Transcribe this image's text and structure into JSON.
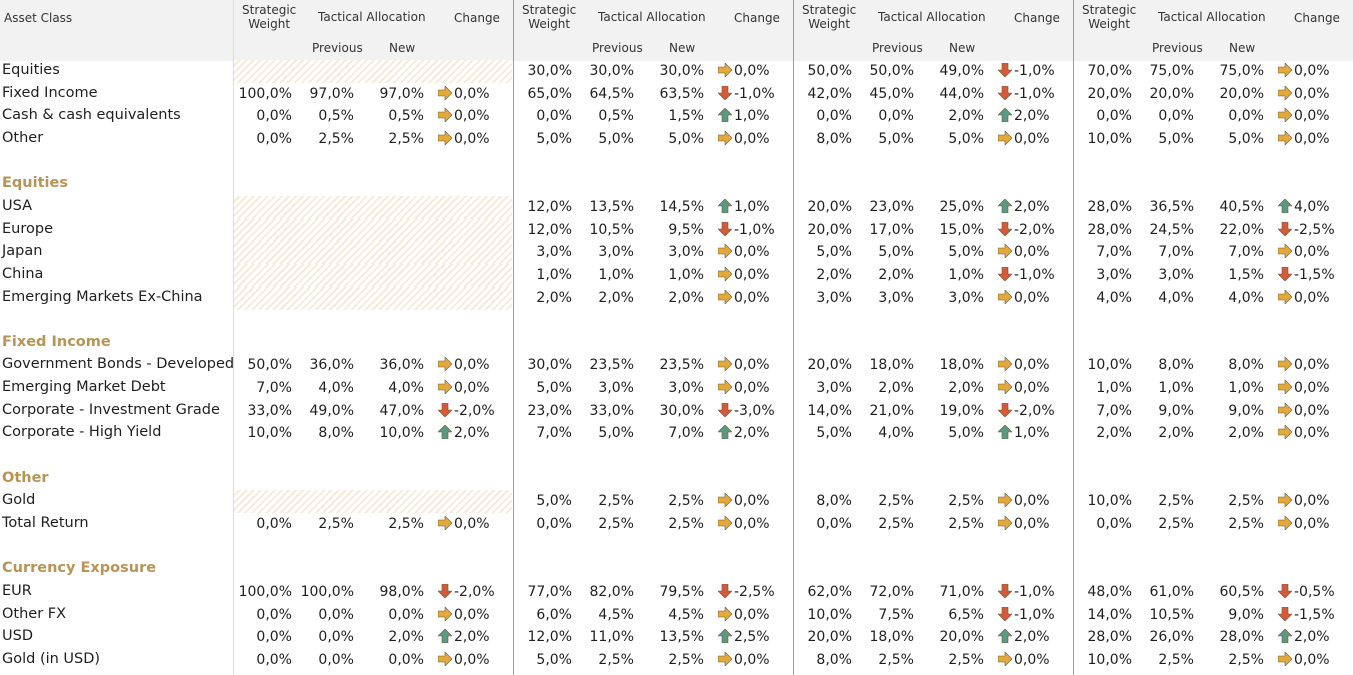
{
  "header": {
    "asset_class": "Asset Class",
    "strategic": "Strategic\nWeight",
    "tactical": "Tactical Allocation",
    "change": "Change",
    "previous": "Previous",
    "new": "New"
  },
  "colors": {
    "up": "#5a9a83",
    "down": "#d65a3a",
    "flat": "#e4a93b",
    "section": "#b99454",
    "hatch": "#f6ead8"
  },
  "rows": [
    {
      "label": "Equities",
      "type": "data",
      "hatch": true,
      "vals": [
        null,
        [
          "30,0%",
          "30,0%",
          "30,0%",
          "flat",
          "0,0%"
        ],
        [
          "50,0%",
          "50,0%",
          "49,0%",
          "down",
          "-1,0%"
        ],
        [
          "70,0%",
          "75,0%",
          "75,0%",
          "flat",
          "0,0%"
        ]
      ]
    },
    {
      "label": "Fixed Income",
      "type": "data",
      "vals": [
        [
          "100,0%",
          "97,0%",
          "97,0%",
          "flat",
          "0,0%"
        ],
        [
          "65,0%",
          "64,5%",
          "63,5%",
          "down",
          "-1,0%"
        ],
        [
          "42,0%",
          "45,0%",
          "44,0%",
          "down",
          "-1,0%"
        ],
        [
          "20,0%",
          "20,0%",
          "20,0%",
          "flat",
          "0,0%"
        ]
      ]
    },
    {
      "label": "Cash & cash equivalents",
      "type": "data",
      "vals": [
        [
          "0,0%",
          "0,5%",
          "0,5%",
          "flat",
          "0,0%"
        ],
        [
          "0,0%",
          "0,5%",
          "1,5%",
          "up",
          "1,0%"
        ],
        [
          "0,0%",
          "0,0%",
          "2,0%",
          "up",
          "2,0%"
        ],
        [
          "0,0%",
          "0,0%",
          "0,0%",
          "flat",
          "0,0%"
        ]
      ]
    },
    {
      "label": "Other",
      "type": "data",
      "vals": [
        [
          "0,0%",
          "2,5%",
          "2,5%",
          "flat",
          "0,0%"
        ],
        [
          "5,0%",
          "5,0%",
          "5,0%",
          "flat",
          "0,0%"
        ],
        [
          "8,0%",
          "5,0%",
          "5,0%",
          "flat",
          "0,0%"
        ],
        [
          "10,0%",
          "5,0%",
          "5,0%",
          "flat",
          "0,0%"
        ]
      ]
    },
    {
      "label": "",
      "type": "blank"
    },
    {
      "label": "Equities",
      "type": "section"
    },
    {
      "label": "USA",
      "type": "data",
      "hatch": true,
      "vals": [
        null,
        [
          "12,0%",
          "13,5%",
          "14,5%",
          "up",
          "1,0%"
        ],
        [
          "20,0%",
          "23,0%",
          "25,0%",
          "up",
          "2,0%"
        ],
        [
          "28,0%",
          "36,5%",
          "40,5%",
          "up",
          "4,0%"
        ]
      ]
    },
    {
      "label": "Europe",
      "type": "data",
      "hatch": true,
      "vals": [
        null,
        [
          "12,0%",
          "10,5%",
          "9,5%",
          "down",
          "-1,0%"
        ],
        [
          "20,0%",
          "17,0%",
          "15,0%",
          "down",
          "-2,0%"
        ],
        [
          "28,0%",
          "24,5%",
          "22,0%",
          "down",
          "-2,5%"
        ]
      ]
    },
    {
      "label": "Japan",
      "type": "data",
      "hatch": true,
      "vals": [
        null,
        [
          "3,0%",
          "3,0%",
          "3,0%",
          "flat",
          "0,0%"
        ],
        [
          "5,0%",
          "5,0%",
          "5,0%",
          "flat",
          "0,0%"
        ],
        [
          "7,0%",
          "7,0%",
          "7,0%",
          "flat",
          "0,0%"
        ]
      ]
    },
    {
      "label": "China",
      "type": "data",
      "hatch": true,
      "vals": [
        null,
        [
          "1,0%",
          "1,0%",
          "1,0%",
          "flat",
          "0,0%"
        ],
        [
          "2,0%",
          "2,0%",
          "1,0%",
          "down",
          "-1,0%"
        ],
        [
          "3,0%",
          "3,0%",
          "1,5%",
          "down",
          "-1,5%"
        ]
      ]
    },
    {
      "label": "Emerging Markets Ex-China",
      "type": "data",
      "hatch": true,
      "vals": [
        null,
        [
          "2,0%",
          "2,0%",
          "2,0%",
          "flat",
          "0,0%"
        ],
        [
          "3,0%",
          "3,0%",
          "3,0%",
          "flat",
          "0,0%"
        ],
        [
          "4,0%",
          "4,0%",
          "4,0%",
          "flat",
          "0,0%"
        ]
      ]
    },
    {
      "label": "",
      "type": "blank"
    },
    {
      "label": "Fixed Income",
      "type": "section"
    },
    {
      "label": "Government Bonds - Developed",
      "type": "data",
      "vals": [
        [
          "50,0%",
          "36,0%",
          "36,0%",
          "flat",
          "0,0%"
        ],
        [
          "30,0%",
          "23,5%",
          "23,5%",
          "flat",
          "0,0%"
        ],
        [
          "20,0%",
          "18,0%",
          "18,0%",
          "flat",
          "0,0%"
        ],
        [
          "10,0%",
          "8,0%",
          "8,0%",
          "flat",
          "0,0%"
        ]
      ]
    },
    {
      "label": "Emerging Market Debt",
      "type": "data",
      "vals": [
        [
          "7,0%",
          "4,0%",
          "4,0%",
          "flat",
          "0,0%"
        ],
        [
          "5,0%",
          "3,0%",
          "3,0%",
          "flat",
          "0,0%"
        ],
        [
          "3,0%",
          "2,0%",
          "2,0%",
          "flat",
          "0,0%"
        ],
        [
          "1,0%",
          "1,0%",
          "1,0%",
          "flat",
          "0,0%"
        ]
      ]
    },
    {
      "label": "Corporate - Investment Grade",
      "type": "data",
      "vals": [
        [
          "33,0%",
          "49,0%",
          "47,0%",
          "down",
          "-2,0%"
        ],
        [
          "23,0%",
          "33,0%",
          "30,0%",
          "down",
          "-3,0%"
        ],
        [
          "14,0%",
          "21,0%",
          "19,0%",
          "down",
          "-2,0%"
        ],
        [
          "7,0%",
          "9,0%",
          "9,0%",
          "flat",
          "0,0%"
        ]
      ]
    },
    {
      "label": "Corporate - High Yield",
      "type": "data",
      "vals": [
        [
          "10,0%",
          "8,0%",
          "10,0%",
          "up",
          "2,0%"
        ],
        [
          "7,0%",
          "5,0%",
          "7,0%",
          "up",
          "2,0%"
        ],
        [
          "5,0%",
          "4,0%",
          "5,0%",
          "up",
          "1,0%"
        ],
        [
          "2,0%",
          "2,0%",
          "2,0%",
          "flat",
          "0,0%"
        ]
      ]
    },
    {
      "label": "",
      "type": "blank"
    },
    {
      "label": "Other",
      "type": "section"
    },
    {
      "label": "Gold",
      "type": "data",
      "hatch": true,
      "vals": [
        null,
        [
          "5,0%",
          "2,5%",
          "2,5%",
          "flat",
          "0,0%"
        ],
        [
          "8,0%",
          "2,5%",
          "2,5%",
          "flat",
          "0,0%"
        ],
        [
          "10,0%",
          "2,5%",
          "2,5%",
          "flat",
          "0,0%"
        ]
      ]
    },
    {
      "label": "Total Return",
      "type": "data",
      "vals": [
        [
          "0,0%",
          "2,5%",
          "2,5%",
          "flat",
          "0,0%"
        ],
        [
          "0,0%",
          "2,5%",
          "2,5%",
          "flat",
          "0,0%"
        ],
        [
          "0,0%",
          "2,5%",
          "2,5%",
          "flat",
          "0,0%"
        ],
        [
          "0,0%",
          "2,5%",
          "2,5%",
          "flat",
          "0,0%"
        ]
      ]
    },
    {
      "label": "",
      "type": "blank"
    },
    {
      "label": "Currency Exposure",
      "type": "section"
    },
    {
      "label": "EUR",
      "type": "data",
      "vals": [
        [
          "100,0%",
          "100,0%",
          "98,0%",
          "down",
          "-2,0%"
        ],
        [
          "77,0%",
          "82,0%",
          "79,5%",
          "down",
          "-2,5%"
        ],
        [
          "62,0%",
          "72,0%",
          "71,0%",
          "down",
          "-1,0%"
        ],
        [
          "48,0%",
          "61,0%",
          "60,5%",
          "down",
          "-0,5%"
        ]
      ]
    },
    {
      "label": "Other FX",
      "type": "data",
      "vals": [
        [
          "0,0%",
          "0,0%",
          "0,0%",
          "flat",
          "0,0%"
        ],
        [
          "6,0%",
          "4,5%",
          "4,5%",
          "flat",
          "0,0%"
        ],
        [
          "10,0%",
          "7,5%",
          "6,5%",
          "down",
          "-1,0%"
        ],
        [
          "14,0%",
          "10,5%",
          "9,0%",
          "down",
          "-1,5%"
        ]
      ]
    },
    {
      "label": "USD",
      "type": "data",
      "vals": [
        [
          "0,0%",
          "0,0%",
          "2,0%",
          "up",
          "2,0%"
        ],
        [
          "12,0%",
          "11,0%",
          "13,5%",
          "up",
          "2,5%"
        ],
        [
          "20,0%",
          "18,0%",
          "20,0%",
          "up",
          "2,0%"
        ],
        [
          "28,0%",
          "26,0%",
          "28,0%",
          "up",
          "2,0%"
        ]
      ]
    },
    {
      "label": "Gold (in USD)",
      "type": "data",
      "vals": [
        [
          "0,0%",
          "0,0%",
          "0,0%",
          "flat",
          "0,0%"
        ],
        [
          "5,0%",
          "2,5%",
          "2,5%",
          "flat",
          "0,0%"
        ],
        [
          "8,0%",
          "2,5%",
          "2,5%",
          "flat",
          "0,0%"
        ],
        [
          "10,0%",
          "2,5%",
          "2,5%",
          "flat",
          "0,0%"
        ]
      ]
    }
  ]
}
